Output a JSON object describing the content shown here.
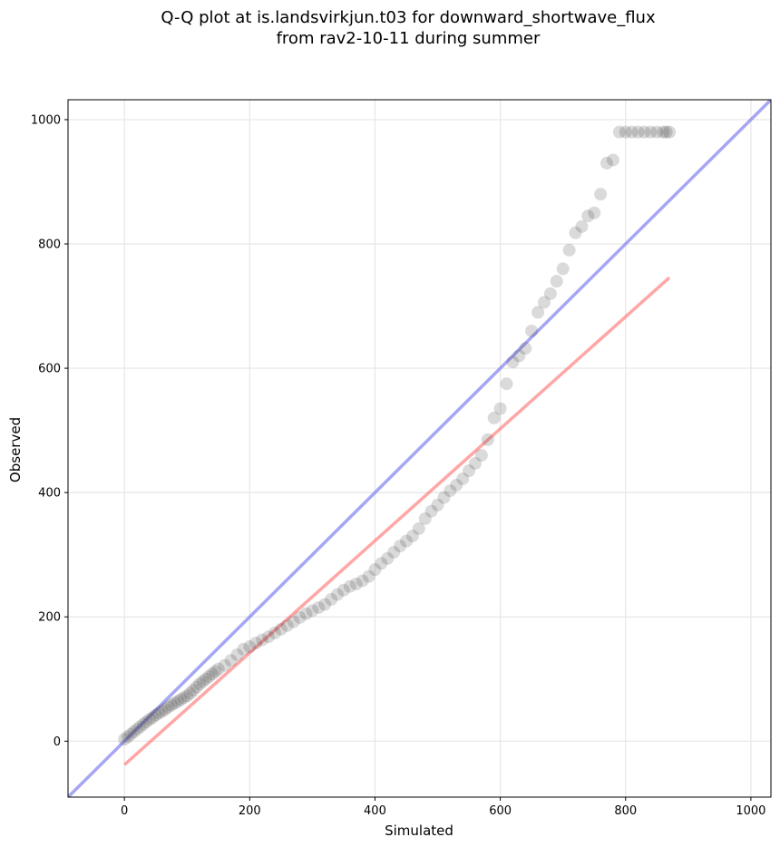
{
  "chart_data": {
    "type": "scatter",
    "title": "Q-Q plot at is.landsvirkjun.t03 for downward_shortwave_flux",
    "subtitle": "from rav2-10-11 during summer",
    "xlabel": "Simulated",
    "ylabel": "Observed",
    "xlim": [
      -90,
      1032
    ],
    "ylim": [
      -90,
      1032
    ],
    "xticks": [
      0,
      200,
      400,
      600,
      800,
      1000
    ],
    "yticks": [
      0,
      200,
      400,
      600,
      800,
      1000
    ],
    "grid": true,
    "colors": {
      "points": "#333333",
      "identity_line": "#7777ee",
      "fit_line": "#ff7777"
    },
    "reference_lines": {
      "identity": {
        "from": [
          -90,
          -90
        ],
        "to": [
          1032,
          1032
        ]
      },
      "fit": {
        "from": [
          0,
          -38
        ],
        "to": [
          870,
          746
        ]
      }
    },
    "series": [
      {
        "x": [
          0,
          5,
          10,
          15,
          20,
          25,
          30,
          35,
          40,
          45,
          50,
          55,
          60,
          65,
          70,
          75,
          80,
          85,
          90,
          95,
          100,
          105,
          110,
          115,
          120,
          125,
          130,
          135,
          140,
          145,
          150,
          160,
          170,
          180,
          190,
          200,
          210,
          220,
          230,
          240,
          250,
          260,
          270,
          280,
          290,
          300,
          310,
          320,
          330,
          340,
          350,
          360,
          370,
          380,
          390,
          400,
          410,
          420,
          430,
          440,
          450,
          460,
          470,
          480,
          490,
          500,
          510,
          520,
          530,
          540,
          550,
          560,
          570,
          580,
          590,
          600,
          610,
          620,
          630,
          640,
          650,
          660,
          670,
          680,
          690,
          700,
          710,
          720,
          730,
          740,
          750,
          760,
          770,
          780,
          790,
          800,
          810,
          820,
          830,
          840,
          850,
          860,
          865,
          870
        ],
        "y": [
          3,
          7,
          11,
          15,
          19,
          23,
          27,
          31,
          35,
          38,
          42,
          45,
          48,
          51,
          55,
          58,
          61,
          64,
          67,
          70,
          73,
          77,
          82,
          87,
          92,
          96,
          100,
          104,
          108,
          112,
          116,
          122,
          130,
          139,
          148,
          152,
          158,
          163,
          168,
          174,
          180,
          186,
          192,
          199,
          205,
          210,
          215,
          220,
          228,
          236,
          243,
          249,
          253,
          258,
          265,
          276,
          286,
          294,
          304,
          314,
          322,
          330,
          342,
          358,
          370,
          380,
          392,
          403,
          412,
          422,
          435,
          447,
          460,
          485,
          520,
          535,
          575,
          610,
          620,
          632,
          660,
          690,
          706,
          720,
          740,
          760,
          790,
          818,
          828,
          845,
          850,
          880,
          930,
          935,
          980,
          980,
          980,
          980,
          980,
          980,
          980,
          980,
          980,
          980
        ]
      }
    ]
  }
}
